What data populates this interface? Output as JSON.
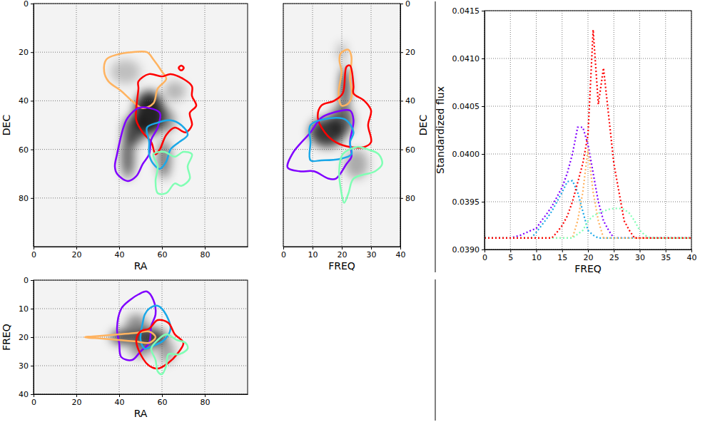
{
  "chart_data": [
    {
      "type": "contour",
      "x_label": "RA",
      "y_label": "DEC",
      "xlim": [
        0,
        100
      ],
      "ylim": [
        100,
        0
      ],
      "xticks": [
        0,
        20,
        40,
        60,
        80
      ],
      "yticks": [
        0,
        20,
        40,
        60,
        80
      ],
      "grid": true,
      "emission": [
        {
          "x": 54,
          "y": 45,
          "rx": 7,
          "ry": 9,
          "level": 1
        },
        {
          "x": 47,
          "y": 52,
          "rx": 5,
          "ry": 6,
          "level": 0.8
        },
        {
          "x": 44,
          "y": 63,
          "rx": 3,
          "ry": 9,
          "level": 0.7
        },
        {
          "x": 61,
          "y": 64,
          "rx": 3,
          "ry": 8,
          "level": 0.6
        },
        {
          "x": 62,
          "y": 48,
          "rx": 4,
          "ry": 5,
          "level": 0.5
        },
        {
          "x": 43,
          "y": 28,
          "rx": 7,
          "ry": 5,
          "level": 0.25
        },
        {
          "x": 66,
          "y": 36,
          "rx": 5,
          "ry": 4,
          "level": 0.3
        }
      ],
      "series": [
        {
          "color": "#ffb360",
          "x": [
            33,
            34,
            39,
            46,
            53,
            56,
            60,
            62,
            58,
            56,
            51,
            46,
            41,
            35
          ],
          "y": [
            28,
            23,
            21,
            20,
            20,
            23,
            28,
            31,
            35,
            41,
            43,
            40,
            36,
            32
          ]
        },
        {
          "color": "#ff0000",
          "x": [
            49,
            54,
            60,
            64,
            70,
            74,
            74,
            76,
            73,
            74,
            71,
            66,
            62,
            59,
            57,
            55,
            51,
            48,
            48,
            49
          ],
          "y": [
            32,
            29,
            30,
            29,
            31,
            34,
            38,
            42,
            45,
            50,
            53,
            51,
            54,
            60,
            62,
            57,
            53,
            48,
            43,
            35
          ]
        },
        {
          "color": "#ff0000",
          "x": [
            69,
            70.2,
            69,
            67.8
          ],
          "y": [
            25.5,
            26.5,
            27.5,
            26.5
          ]
        },
        {
          "color": "#8000ff",
          "x": [
            54,
            59,
            58,
            55,
            54,
            51,
            48,
            44,
            39,
            38,
            39,
            42,
            44,
            49
          ],
          "y": [
            43,
            45,
            51,
            56,
            62,
            66,
            71,
            73,
            70,
            67,
            62,
            51,
            47,
            43
          ]
        },
        {
          "color": "#1aa8e8",
          "x": [
            53,
            58,
            64,
            69,
            72,
            68,
            64,
            62,
            59,
            56,
            54,
            54
          ],
          "y": [
            51,
            49,
            48,
            50,
            54,
            57,
            60,
            65,
            68,
            66,
            62,
            57
          ]
        },
        {
          "color": "#80ffb4",
          "x": [
            56,
            61,
            66,
            70,
            74,
            72,
            73,
            69,
            66,
            62,
            58,
            57,
            58
          ],
          "y": [
            62,
            61,
            63,
            61,
            62,
            67,
            72,
            75,
            74,
            78,
            78,
            73,
            67
          ]
        }
      ]
    },
    {
      "type": "contour",
      "x_label": "FREQ",
      "y_label": "DEC",
      "xlim": [
        0,
        40
      ],
      "ylim": [
        100,
        0
      ],
      "xticks": [
        0,
        10,
        20,
        30,
        40
      ],
      "yticks": [
        0,
        20,
        40,
        60,
        80
      ],
      "grid": true,
      "emission": [
        {
          "x": 21,
          "y": 35,
          "rx": 1.5,
          "ry": 9,
          "level": 0.9
        },
        {
          "x": 15,
          "y": 53,
          "rx": 6,
          "ry": 6,
          "level": 0.9
        },
        {
          "x": 20,
          "y": 48,
          "rx": 4,
          "ry": 6,
          "level": 0.7
        },
        {
          "x": 25,
          "y": 66,
          "rx": 4,
          "ry": 6,
          "level": 0.35
        },
        {
          "x": 20,
          "y": 20,
          "rx": 1.5,
          "ry": 4,
          "level": 0.3
        }
      ],
      "series": [
        {
          "color": "#ffb360",
          "x": [
            19.6,
            22.3,
            23.3,
            22.8,
            23.5,
            22.3,
            19.9,
            18.9,
            19.9,
            19.2
          ],
          "y": [
            20.5,
            19,
            22,
            31,
            37,
            41,
            42,
            37,
            28,
            23.5
          ]
        },
        {
          "color": "#ff0000",
          "x": [
            21.6,
            22.8,
            24,
            24,
            27.7,
            30,
            29,
            30,
            27.7,
            22.8,
            17.9,
            14.2,
            11.8,
            13,
            17.4,
            20.3
          ],
          "y": [
            26,
            25.5,
            34,
            37,
            40,
            44,
            50,
            57,
            59,
            59,
            57,
            53,
            47,
            42,
            40,
            37
          ]
        },
        {
          "color": "#8000ff",
          "x": [
            16.7,
            22.8,
            24,
            22.8,
            23.3,
            21.6,
            18,
            15.4,
            10.5,
            5.6,
            1.5,
            3.2,
            9.3,
            13
          ],
          "y": [
            45,
            44,
            48,
            57,
            63,
            66,
            72,
            72,
            69,
            69,
            67.5,
            61.6,
            53,
            47
          ]
        },
        {
          "color": "#1aa8e8",
          "x": [
            9.3,
            17.9,
            21.6,
            24,
            22.8,
            23.3,
            19.1,
            13,
            9.3,
            9.3
          ],
          "y": [
            50,
            47,
            48,
            53,
            57,
            62,
            64,
            64.5,
            64.5,
            57
          ]
        },
        {
          "color": "#80ffb4",
          "x": [
            20.3,
            25.2,
            28.9,
            32.6,
            33.8,
            31.4,
            24,
            22.3,
            20.8,
            19.9,
            19.1
          ],
          "y": [
            62,
            59,
            60,
            62,
            66,
            69,
            72,
            78,
            82,
            78,
            69
          ]
        }
      ]
    },
    {
      "type": "contour",
      "x_label": "RA",
      "y_label": "FREQ",
      "xlim": [
        0,
        100
      ],
      "ylim": [
        40,
        0
      ],
      "xticks": [
        0,
        20,
        40,
        60,
        80
      ],
      "yticks": [
        0,
        10,
        20,
        30,
        40
      ],
      "grid": true,
      "emission": [
        {
          "x": 42,
          "y": 20,
          "rx": 6,
          "ry": 2.5,
          "level": 0.8
        },
        {
          "x": 55,
          "y": 20,
          "rx": 7,
          "ry": 3,
          "level": 0.9
        },
        {
          "x": 48,
          "y": 16,
          "rx": 5,
          "ry": 4,
          "level": 0.5
        },
        {
          "x": 62,
          "y": 25,
          "rx": 4,
          "ry": 4,
          "level": 0.4
        },
        {
          "x": 50,
          "y": 24,
          "rx": 5,
          "ry": 3,
          "level": 0.5
        }
      ],
      "series": [
        {
          "color": "#8000ff",
          "x": [
            49,
            53,
            56,
            57,
            55,
            54,
            50,
            46,
            41,
            40,
            39,
            41,
            45
          ],
          "y": [
            5,
            4,
            7,
            12,
            16,
            22,
            25,
            28,
            27,
            22,
            17,
            10,
            7
          ]
        },
        {
          "color": "#1aa8e8",
          "x": [
            54,
            58,
            61,
            64,
            61,
            56,
            52,
            50,
            51,
            52
          ],
          "y": [
            10,
            9,
            11,
            17,
            21,
            23,
            24,
            21,
            15,
            12
          ]
        },
        {
          "color": "#ffb360",
          "x": [
            24,
            32,
            40,
            48,
            54,
            57,
            54,
            48,
            40,
            32
          ],
          "y": [
            20,
            19.5,
            19,
            18.5,
            18,
            20,
            22,
            21.5,
            21,
            20.5
          ]
        },
        {
          "color": "#ff0000",
          "x": [
            54,
            58,
            63,
            66,
            70,
            67,
            63,
            58,
            54,
            50,
            48,
            50
          ],
          "y": [
            17,
            14,
            15,
            19,
            22,
            26,
            29,
            31,
            30,
            26,
            21,
            18
          ]
        },
        {
          "color": "#80ffb4",
          "x": [
            58,
            62,
            67,
            71,
            72,
            68,
            63,
            62,
            60,
            58,
            57,
            55
          ],
          "y": [
            21,
            19,
            21,
            22,
            24,
            26,
            26,
            30,
            33,
            32,
            28,
            24
          ]
        }
      ]
    },
    {
      "type": "line",
      "x_label": "FREQ",
      "y_label": "Standardized flux",
      "xlim": [
        0,
        40
      ],
      "ylim": [
        0.039,
        0.0415
      ],
      "xticks": [
        0,
        5,
        10,
        15,
        20,
        25,
        30,
        35,
        40
      ],
      "yticks": [
        {
          "value": 0.039,
          "label": "0.0390"
        },
        {
          "value": 0.0395,
          "label": "0.0395"
        },
        {
          "value": 0.04,
          "label": "0.0400"
        },
        {
          "value": 0.0405,
          "label": "0.0405"
        },
        {
          "value": 0.041,
          "label": "0.0410"
        },
        {
          "value": 0.0415,
          "label": "0.0415"
        }
      ],
      "grid": true,
      "line_style": "dotted",
      "series": [
        {
          "color": "#8000ff",
          "x": [
            0,
            5,
            7,
            9,
            10,
            11,
            12,
            13,
            14,
            15,
            16,
            17,
            18,
            19,
            20,
            21,
            22,
            23,
            24,
            25,
            40
          ],
          "values": [
            0.03912,
            0.03912,
            0.03915,
            0.0392,
            0.03922,
            0.0393,
            0.03937,
            0.03945,
            0.03955,
            0.03965,
            0.0398,
            0.04,
            0.04028,
            0.04028,
            0.0401,
            0.0398,
            0.0395,
            0.0393,
            0.0392,
            0.03912,
            0.03912
          ]
        },
        {
          "color": "#1aa8e8",
          "x": [
            0,
            9,
            10,
            11,
            12,
            13,
            14,
            15,
            16,
            17,
            18,
            19,
            20,
            21,
            22,
            40
          ],
          "values": [
            0.03912,
            0.03912,
            0.03918,
            0.03925,
            0.03932,
            0.0394,
            0.0395,
            0.0396,
            0.03971,
            0.03972,
            0.0396,
            0.0394,
            0.0392,
            0.03915,
            0.03912,
            0.03912
          ]
        },
        {
          "color": "#ffb360",
          "x": [
            0,
            17,
            18,
            19,
            20,
            21,
            22,
            23,
            40
          ],
          "values": [
            0.03912,
            0.03912,
            0.0393,
            0.0396,
            0.04005,
            0.0396,
            0.0393,
            0.03912,
            0.03912
          ]
        },
        {
          "color": "#80ffb4",
          "x": [
            0,
            17,
            19,
            20,
            21,
            22,
            23,
            24,
            25,
            26,
            27,
            28,
            29,
            30,
            31,
            32,
            40
          ],
          "values": [
            0.03912,
            0.03912,
            0.0392,
            0.0393,
            0.03935,
            0.03938,
            0.0394,
            0.03942,
            0.03943,
            0.03943,
            0.03942,
            0.03938,
            0.0393,
            0.0392,
            0.03915,
            0.03912,
            0.03912
          ]
        },
        {
          "color": "#ff0000",
          "x": [
            0,
            13,
            14,
            15,
            16,
            17,
            18,
            19,
            20,
            21,
            22,
            23,
            24,
            25,
            26,
            27,
            28,
            29,
            40
          ],
          "values": [
            0.03912,
            0.03912,
            0.03918,
            0.03925,
            0.03935,
            0.0395,
            0.0397,
            0.0399,
            0.0402,
            0.0413,
            0.04052,
            0.0409,
            0.0404,
            0.0399,
            0.0396,
            0.0393,
            0.0392,
            0.03912,
            0.03912
          ]
        }
      ]
    }
  ]
}
